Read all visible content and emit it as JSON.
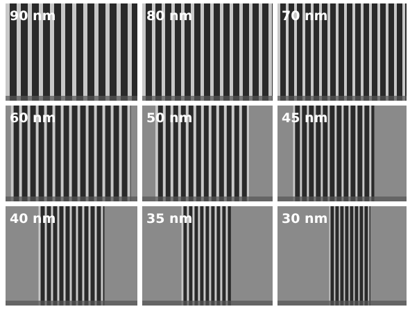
{
  "panels": [
    {
      "label": "90 nm"
    },
    {
      "label": "80 nm"
    },
    {
      "label": "70 nm"
    },
    {
      "label": "60 nm"
    },
    {
      "label": "50 nm"
    },
    {
      "label": "45 nm"
    },
    {
      "label": "40 nm"
    },
    {
      "label": "35 nm"
    },
    {
      "label": "30 nm"
    }
  ]
}
